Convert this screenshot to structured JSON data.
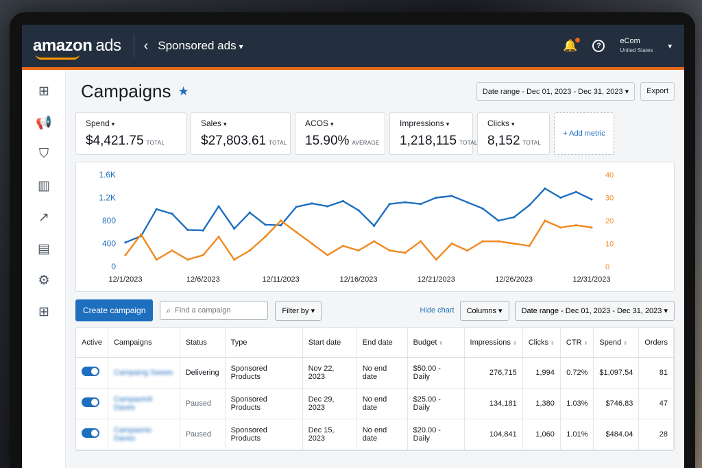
{
  "topbar": {
    "logo_main": "amazon",
    "logo_sub": "ads",
    "account_title": "Sponsored ads",
    "account_name": "eCom",
    "account_region": "United States"
  },
  "page": {
    "title": "Campaigns",
    "date_range": "Date range - Dec 01, 2023 - Dec 31, 2023",
    "export_label": "Export"
  },
  "metrics": [
    {
      "label": "Spend",
      "value": "$4,421.75",
      "unit": "TOTAL"
    },
    {
      "label": "Sales",
      "value": "$27,803.61",
      "unit": "TOTAL"
    },
    {
      "label": "ACOS",
      "value": "15.90%",
      "unit": "AVERAGE"
    },
    {
      "label": "Impressions",
      "value": "1,218,115",
      "unit": "TOTAL"
    },
    {
      "label": "Clicks",
      "value": "8,152",
      "unit": "TOTAL"
    }
  ],
  "add_metric_label": "+ Add metric",
  "chart_data": {
    "type": "line",
    "x": [
      "12/1/2023",
      "12/2/2023",
      "12/3/2023",
      "12/4/2023",
      "12/5/2023",
      "12/6/2023",
      "12/7/2023",
      "12/8/2023",
      "12/9/2023",
      "12/10/2023",
      "12/11/2023",
      "12/12/2023",
      "12/13/2023",
      "12/14/2023",
      "12/15/2023",
      "12/16/2023",
      "12/17/2023",
      "12/18/2023",
      "12/19/2023",
      "12/20/2023",
      "12/21/2023",
      "12/22/2023",
      "12/23/2023",
      "12/24/2023",
      "12/25/2023",
      "12/26/2023",
      "12/27/2023",
      "12/28/2023",
      "12/29/2023",
      "12/30/2023",
      "12/31/2023"
    ],
    "x_tick_labels": [
      "12/1/2023",
      "12/6/2023",
      "12/11/2023",
      "12/16/2023",
      "12/21/2023",
      "12/26/2023",
      "12/31/2023"
    ],
    "x_tick_index": [
      0,
      5,
      10,
      15,
      20,
      25,
      30
    ],
    "y_left_ticks": [
      "0",
      "400",
      "800",
      "1.2K",
      "1.6K"
    ],
    "y_left_range": [
      0,
      1600
    ],
    "y_right_ticks": [
      "0",
      "10",
      "20",
      "30",
      "40"
    ],
    "y_right_range": [
      0,
      40
    ],
    "series": [
      {
        "color": "#1f6fbf",
        "axis": "left",
        "values": [
          420,
          530,
          1000,
          920,
          640,
          630,
          1050,
          660,
          940,
          730,
          720,
          1040,
          1100,
          1050,
          1140,
          980,
          710,
          1090,
          1120,
          1090,
          1200,
          1230,
          1120,
          1010,
          800,
          860,
          1070,
          1360,
          1200,
          1300,
          1170
        ]
      },
      {
        "color": "#f0891e",
        "axis": "right",
        "values": [
          5,
          14,
          3,
          7,
          3,
          5,
          13,
          3,
          7,
          13,
          20,
          15,
          10,
          5,
          9,
          7,
          11,
          7,
          6,
          11,
          3,
          10,
          7,
          11,
          11,
          10,
          9,
          20,
          17,
          18,
          17
        ]
      }
    ]
  },
  "toolbar": {
    "create_label": "Create campaign",
    "search_placeholder": "Find a campaign",
    "filter_label": "Filter by",
    "hide_chart_label": "Hide chart",
    "columns_label": "Columns",
    "date_range": "Date range - Dec 01, 2023 - Dec 31, 2023"
  },
  "table": {
    "headers": [
      "Active",
      "Campaigns",
      "Status",
      "Type",
      "Start date",
      "End date",
      "Budget",
      "Impressions",
      "Clicks",
      "CTR",
      "Spend",
      "Orders"
    ],
    "rows": [
      {
        "campaign": "Campaing Swees",
        "status": "Delivering",
        "type": "Sponsored Products",
        "start": "Nov 22, 2023",
        "end": "No end date",
        "budget": "$50.00 - Daily",
        "impressions": "276,715",
        "clicks": "1,994",
        "ctr": "0.72%",
        "spend": "$1,097.54",
        "orders": "81"
      },
      {
        "campaign": "Campaomit Daves",
        "status": "Paused",
        "type": "Sponsored Products",
        "start": "Dec 29, 2023",
        "end": "No end date",
        "budget": "$25.00 - Daily",
        "impressions": "134,181",
        "clicks": "1,380",
        "ctr": "1.03%",
        "spend": "$746.83",
        "orders": "47"
      },
      {
        "campaign": "Campaonic Daves",
        "status": "Paused",
        "type": "Sponsored Products",
        "start": "Dec 15, 2023",
        "end": "No end date",
        "budget": "$20.00 - Daily",
        "impressions": "104,841",
        "clicks": "1,060",
        "ctr": "1.01%",
        "spend": "$484.04",
        "orders": "28"
      }
    ]
  }
}
